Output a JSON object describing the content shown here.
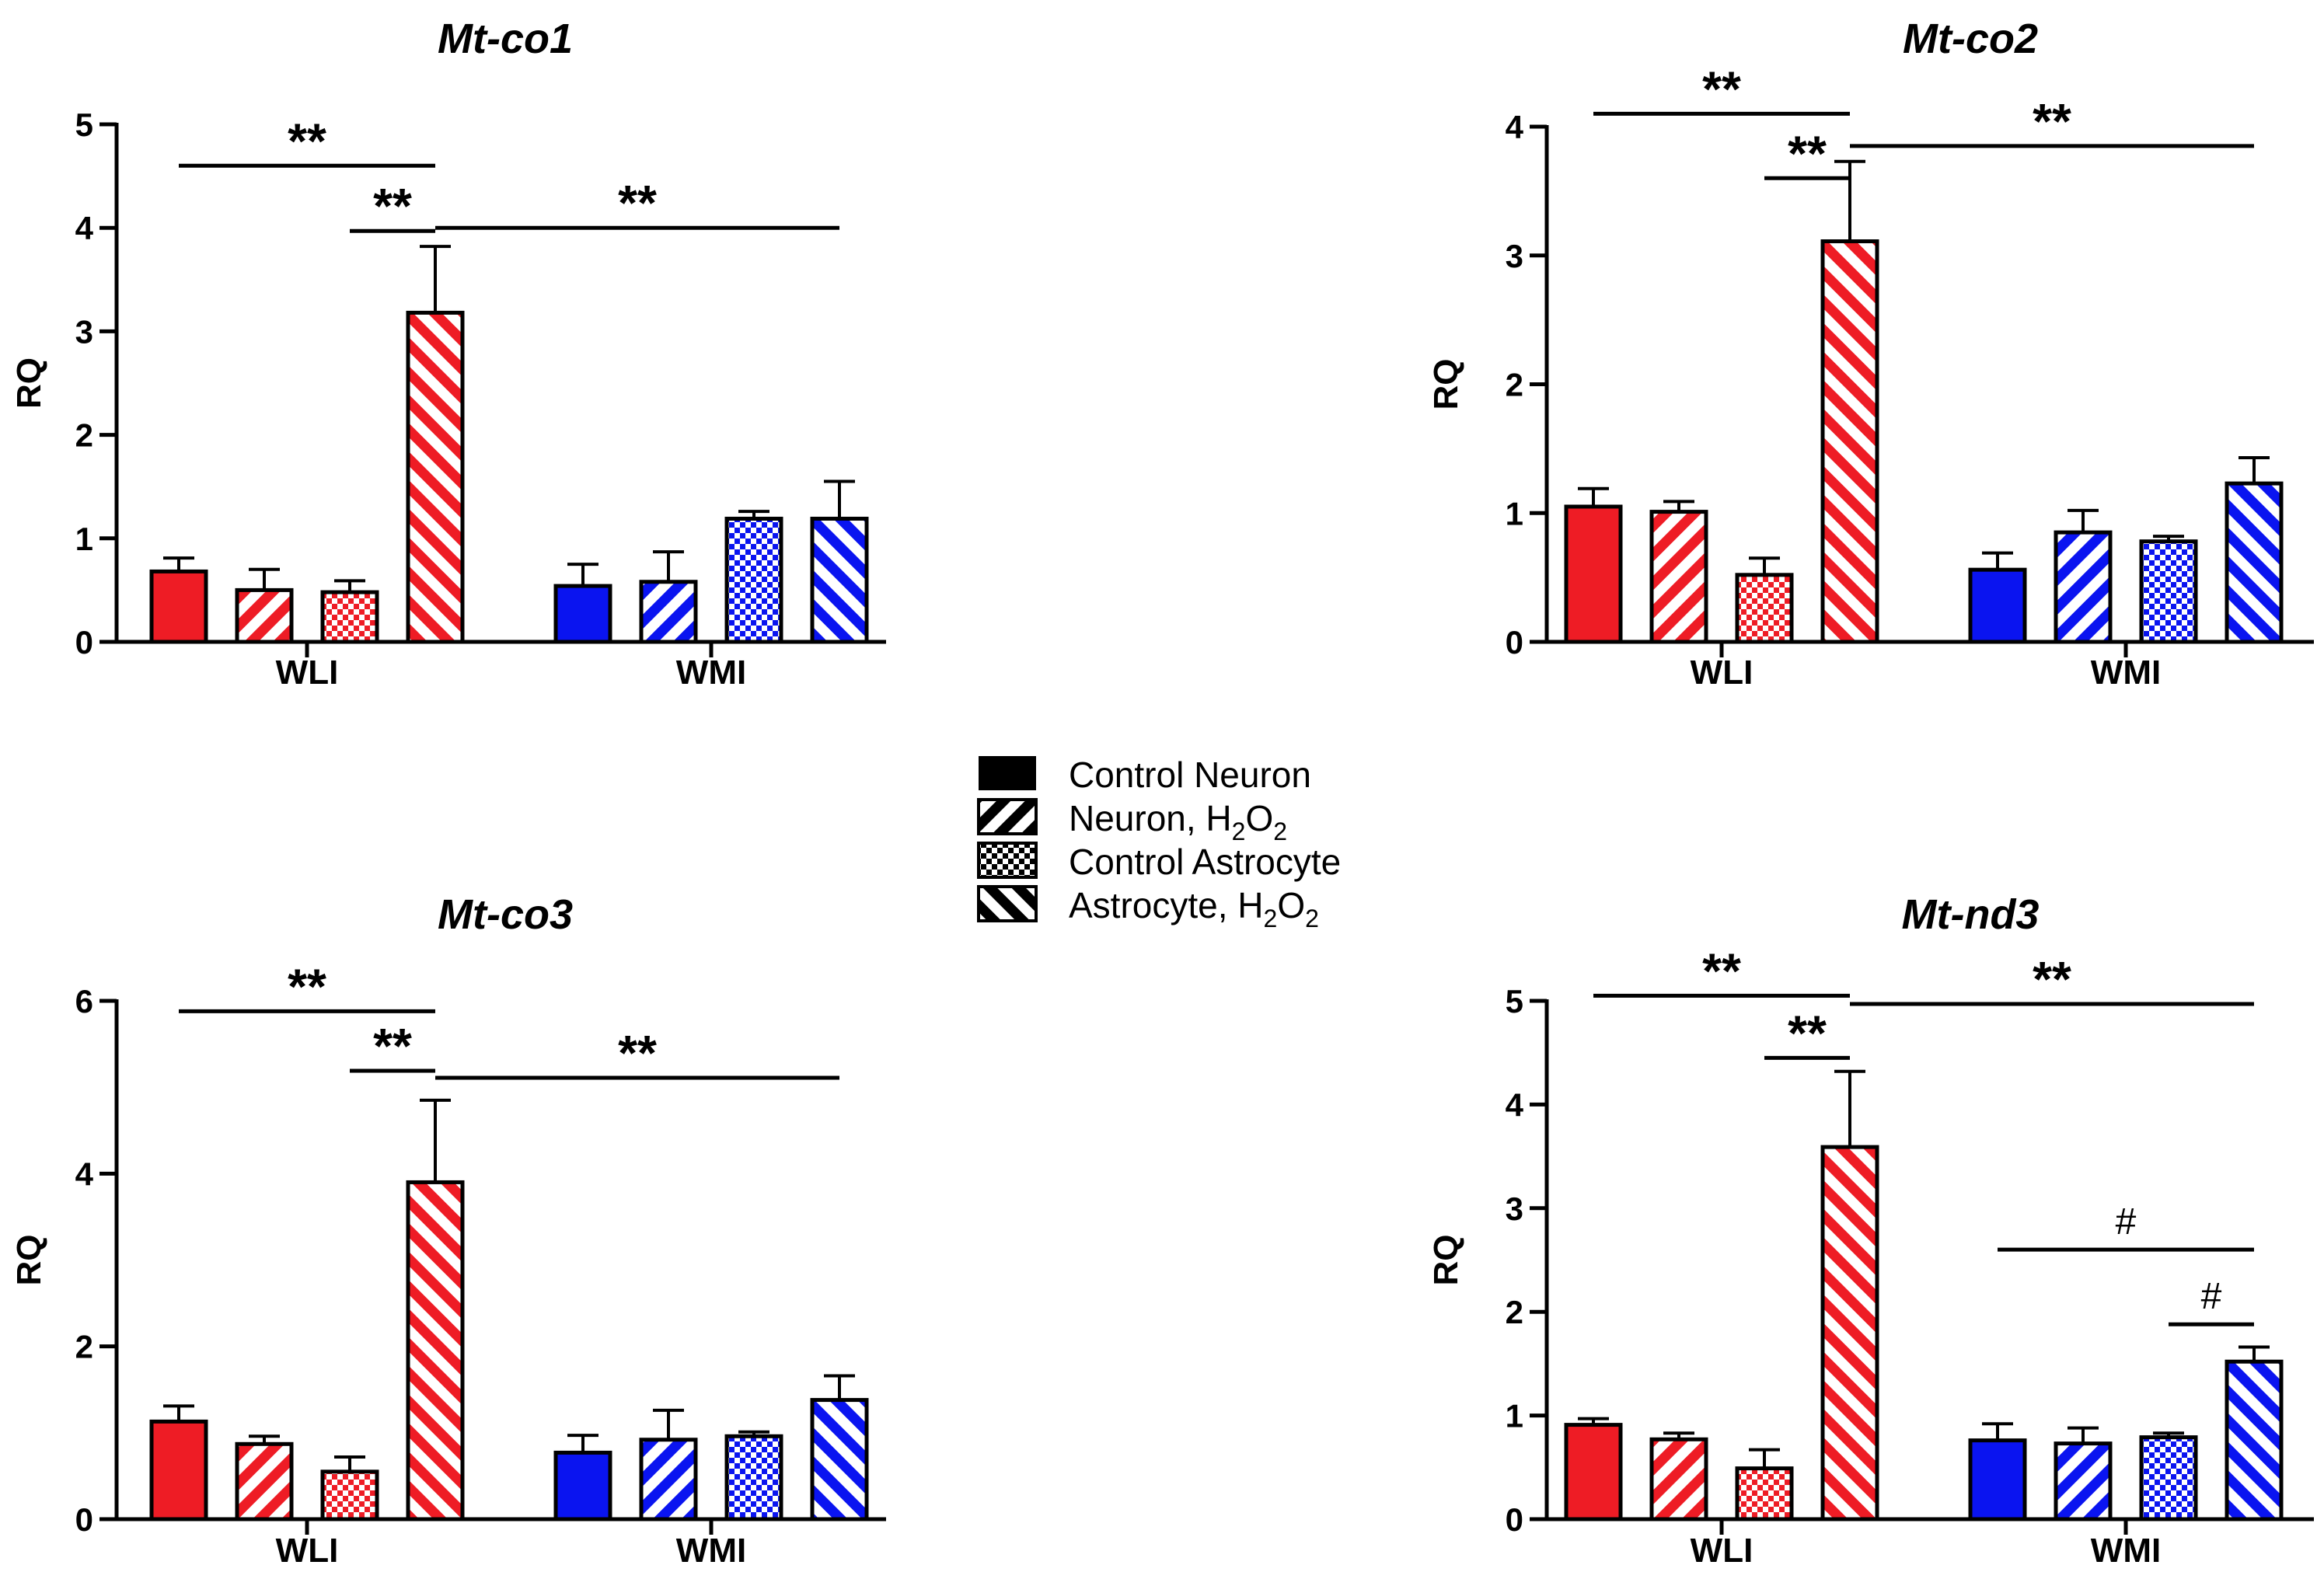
{
  "legend": {
    "entries": [
      {
        "label": "Control Neuron",
        "pattern": "solid"
      },
      {
        "label_main": "Neuron, H",
        "sub1": "2",
        "mid": "O",
        "sub2": "2",
        "pattern": "diag-up"
      },
      {
        "label": "Control Astrocyte",
        "pattern": "checker"
      },
      {
        "label_main": "Astrocyte, H",
        "sub1": "2",
        "mid": "O",
        "sub2": "2",
        "pattern": "diag-down"
      }
    ]
  },
  "colors": {
    "wli": "#ee1c25",
    "wmi": "#0a14f0",
    "axis": "#000000"
  },
  "chart_data": [
    {
      "type": "bar",
      "title": "Mt-co1",
      "ylabel": "RQ",
      "ylim": [
        0,
        5
      ],
      "yticks": [
        "0",
        "1",
        "2",
        "3",
        "4",
        "5"
      ],
      "tickstep": 1,
      "groups": [
        "WLI",
        "WMI"
      ],
      "series": [
        {
          "name": "Control Neuron",
          "pattern": "solid",
          "values": [
            0.68,
            0.54
          ],
          "errors": [
            0.13,
            0.21
          ]
        },
        {
          "name": "Neuron, H2O2",
          "pattern": "diag-up",
          "values": [
            0.5,
            0.58
          ],
          "errors": [
            0.2,
            0.29
          ]
        },
        {
          "name": "Control Astrocyte",
          "pattern": "checker",
          "values": [
            0.48,
            1.19
          ],
          "errors": [
            0.11,
            0.07
          ]
        },
        {
          "name": "Astrocyte, H2O2",
          "pattern": "diag-down",
          "values": [
            3.18,
            1.19
          ],
          "errors": [
            0.64,
            0.36
          ]
        }
      ],
      "annotations": [
        {
          "text": "**",
          "from": [
            0,
            0
          ],
          "to": [
            0,
            3
          ],
          "level": 4.6
        },
        {
          "text": "**",
          "from": [
            0,
            2
          ],
          "to": [
            0,
            3
          ],
          "level": 3.97
        },
        {
          "text": "**",
          "from": [
            0,
            3
          ],
          "to": [
            1,
            3
          ],
          "level": 4.0
        }
      ]
    },
    {
      "type": "bar",
      "title": "Mt-co2",
      "ylabel": "RQ",
      "ylim": [
        0,
        4
      ],
      "yticks": [
        "0",
        "1",
        "2",
        "3",
        "4"
      ],
      "tickstep": 1,
      "groups": [
        "WLI",
        "WMI"
      ],
      "series": [
        {
          "name": "Control Neuron",
          "pattern": "solid",
          "values": [
            1.05,
            0.56
          ],
          "errors": [
            0.14,
            0.13
          ]
        },
        {
          "name": "Neuron, H2O2",
          "pattern": "diag-up",
          "values": [
            1.01,
            0.85
          ],
          "errors": [
            0.08,
            0.17
          ]
        },
        {
          "name": "Control Astrocyte",
          "pattern": "checker",
          "values": [
            0.52,
            0.78
          ],
          "errors": [
            0.13,
            0.04
          ]
        },
        {
          "name": "Astrocyte, H2O2",
          "pattern": "diag-down",
          "values": [
            3.11,
            1.23
          ],
          "errors": [
            0.62,
            0.2
          ]
        }
      ],
      "annotations": [
        {
          "text": "**",
          "from": [
            0,
            0
          ],
          "to": [
            0,
            3
          ],
          "level": 4.1
        },
        {
          "text": "**",
          "from": [
            0,
            2
          ],
          "to": [
            0,
            3
          ],
          "level": 3.6
        },
        {
          "text": "**",
          "from": [
            0,
            3
          ],
          "to": [
            1,
            3
          ],
          "level": 3.85
        }
      ]
    },
    {
      "type": "bar",
      "title": "Mt-co3",
      "ylabel": "RQ",
      "ylim": [
        0,
        6
      ],
      "yticks": [
        "0",
        "2",
        "4",
        "6"
      ],
      "tickstep": 2,
      "groups": [
        "WLI",
        "WMI"
      ],
      "series": [
        {
          "name": "Control Neuron",
          "pattern": "solid",
          "values": [
            1.13,
            0.77
          ],
          "errors": [
            0.18,
            0.2
          ]
        },
        {
          "name": "Neuron, H2O2",
          "pattern": "diag-up",
          "values": [
            0.87,
            0.92
          ],
          "errors": [
            0.09,
            0.34
          ]
        },
        {
          "name": "Control Astrocyte",
          "pattern": "checker",
          "values": [
            0.55,
            0.96
          ],
          "errors": [
            0.17,
            0.05
          ]
        },
        {
          "name": "Astrocyte, H2O2",
          "pattern": "diag-down",
          "values": [
            3.9,
            1.38
          ],
          "errors": [
            0.95,
            0.28
          ]
        }
      ],
      "annotations": [
        {
          "text": "**",
          "from": [
            0,
            0
          ],
          "to": [
            0,
            3
          ],
          "level": 5.88
        },
        {
          "text": "**",
          "from": [
            0,
            2
          ],
          "to": [
            0,
            3
          ],
          "level": 5.19
        },
        {
          "text": "**",
          "from": [
            0,
            3
          ],
          "to": [
            1,
            3
          ],
          "level": 5.11
        }
      ]
    },
    {
      "type": "bar",
      "title": "Mt-nd3",
      "ylabel": "RQ",
      "ylim": [
        0,
        5
      ],
      "yticks": [
        "0",
        "1",
        "2",
        "3",
        "4",
        "5"
      ],
      "tickstep": 1,
      "groups": [
        "WLI",
        "WMI"
      ],
      "series": [
        {
          "name": "Control Neuron",
          "pattern": "solid",
          "values": [
            0.91,
            0.76
          ],
          "errors": [
            0.06,
            0.16
          ]
        },
        {
          "name": "Neuron, H2O2",
          "pattern": "diag-up",
          "values": [
            0.77,
            0.73
          ],
          "errors": [
            0.06,
            0.15
          ]
        },
        {
          "name": "Control Astrocyte",
          "pattern": "checker",
          "values": [
            0.49,
            0.79
          ],
          "errors": [
            0.18,
            0.04
          ]
        },
        {
          "name": "Astrocyte, H2O2",
          "pattern": "diag-down",
          "values": [
            3.59,
            1.52
          ],
          "errors": [
            0.73,
            0.14
          ]
        }
      ],
      "annotations": [
        {
          "text": "**",
          "from": [
            0,
            0
          ],
          "to": [
            0,
            3
          ],
          "level": 5.05
        },
        {
          "text": "**",
          "from": [
            0,
            2
          ],
          "to": [
            0,
            3
          ],
          "level": 4.45
        },
        {
          "text": "**",
          "from": [
            0,
            3
          ],
          "to": [
            1,
            3
          ],
          "level": 4.97
        },
        {
          "text": "#",
          "from": [
            1,
            0
          ],
          "to": [
            1,
            3
          ],
          "level": 2.6
        },
        {
          "text": "#",
          "from": [
            1,
            2
          ],
          "to": [
            1,
            3
          ],
          "level": 1.88
        }
      ]
    }
  ]
}
